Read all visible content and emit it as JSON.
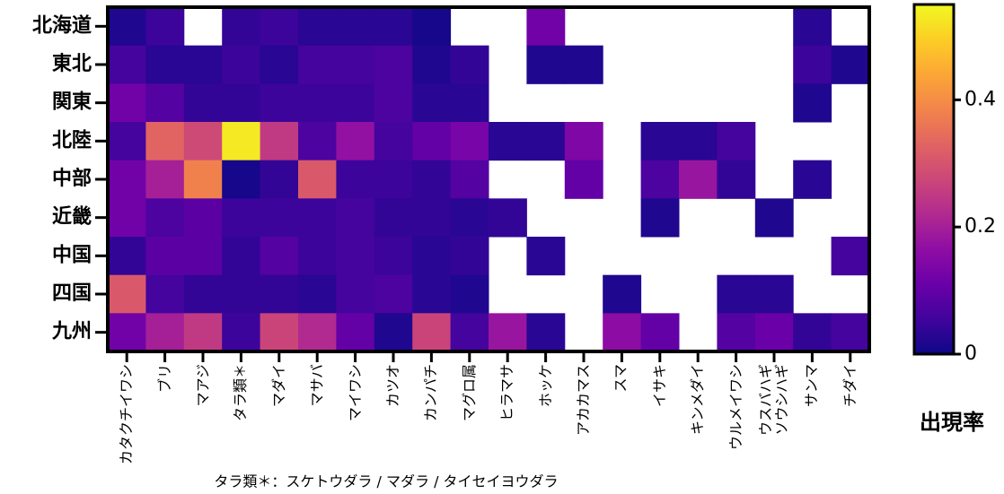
{
  "chart_data": {
    "type": "heatmap",
    "colormap": "plasma",
    "categories": [
      "カタクチイワシ",
      "ブリ",
      "マアジ",
      "タラ類＊",
      "マダイ",
      "マサバ",
      "マイワシ",
      "カツオ",
      "カンパチ",
      "マグロ属",
      "ヒラマサ",
      "ホッケ",
      "アカカマス",
      "スマ",
      "イサキ",
      "キンメダイ",
      "ウルメイワシ",
      "ウスバハギ\nソウシハギ",
      "サンマ",
      "チダイ"
    ],
    "rows": [
      "北海道",
      "東北",
      "関東",
      "北陸",
      "中部",
      "近畿",
      "中国",
      "四国",
      "九州"
    ],
    "values": [
      [
        0.02,
        0.05,
        null,
        0.04,
        0.05,
        0.03,
        0.03,
        0.03,
        0.01,
        null,
        null,
        0.12,
        null,
        null,
        null,
        null,
        null,
        null,
        0.03,
        null
      ],
      [
        0.06,
        0.03,
        0.03,
        0.05,
        0.03,
        0.06,
        0.06,
        0.07,
        0.02,
        0.04,
        null,
        0.02,
        0.02,
        null,
        null,
        null,
        null,
        null,
        0.05,
        0.02
      ],
      [
        0.12,
        0.08,
        0.04,
        0.04,
        0.05,
        0.05,
        0.05,
        0.07,
        0.03,
        0.03,
        null,
        null,
        null,
        null,
        null,
        null,
        null,
        null,
        0.02,
        null
      ],
      [
        0.06,
        0.33,
        0.28,
        0.53,
        0.25,
        0.07,
        0.17,
        0.06,
        0.1,
        0.13,
        0.03,
        0.03,
        0.14,
        null,
        0.03,
        0.03,
        0.06,
        null,
        null,
        null
      ],
      [
        0.12,
        0.2,
        0.38,
        0.01,
        0.04,
        0.31,
        0.05,
        0.05,
        0.04,
        0.08,
        null,
        null,
        0.1,
        null,
        0.07,
        0.18,
        0.04,
        null,
        0.03,
        null
      ],
      [
        0.12,
        0.07,
        0.09,
        0.05,
        0.05,
        0.05,
        0.06,
        0.04,
        0.04,
        0.03,
        0.04,
        null,
        null,
        null,
        0.02,
        null,
        null,
        0.02,
        null,
        null
      ],
      [
        0.04,
        0.09,
        0.09,
        0.04,
        0.08,
        0.05,
        0.06,
        0.05,
        0.03,
        0.04,
        null,
        0.03,
        null,
        null,
        null,
        null,
        null,
        null,
        null,
        0.06
      ],
      [
        0.31,
        0.06,
        0.04,
        0.04,
        0.04,
        0.03,
        0.06,
        0.07,
        0.03,
        0.02,
        null,
        null,
        null,
        0.02,
        null,
        null,
        0.03,
        0.03,
        null,
        null
      ],
      [
        0.12,
        0.2,
        0.25,
        0.05,
        0.27,
        0.22,
        0.1,
        0.02,
        0.27,
        0.06,
        0.18,
        0.03,
        null,
        0.16,
        0.1,
        null,
        0.08,
        0.11,
        0.04,
        0.06
      ]
    ],
    "zlim": [
      0,
      0.55
    ],
    "zticks": [
      0,
      0.2,
      0.4
    ],
    "colorbar_label": "出現率",
    "annotation": "タラ類＊：スケトウダラ / マダラ / タイセイヨウダラ"
  }
}
